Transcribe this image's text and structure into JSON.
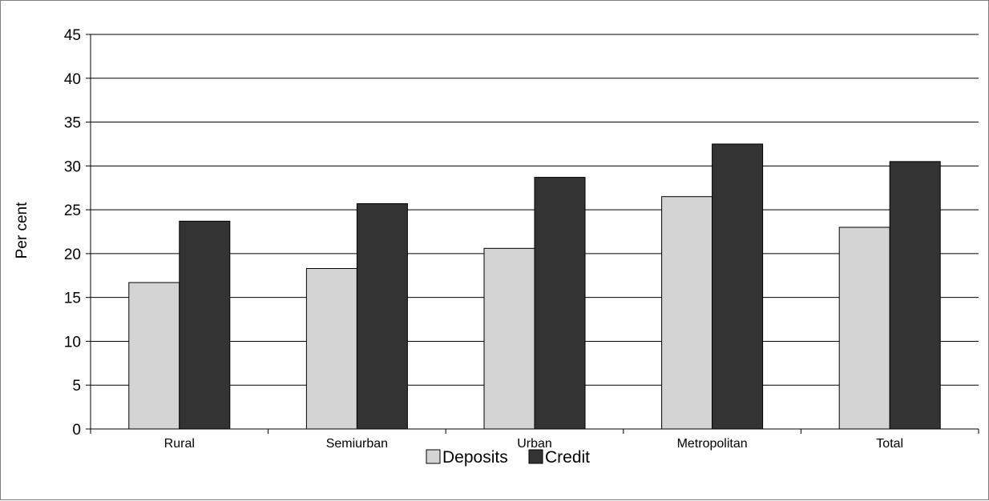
{
  "chart_data": {
    "type": "bar",
    "title": "",
    "xlabel": "",
    "ylabel": "Per cent",
    "ylim": [
      0,
      45
    ],
    "yticks": [
      0,
      5,
      10,
      15,
      20,
      25,
      30,
      35,
      40,
      45
    ],
    "grid": true,
    "legend_position": "bottom",
    "categories": [
      "Rural",
      "Semiurban",
      "Urban",
      "Metropolitan",
      "Total"
    ],
    "series": [
      {
        "name": "Deposits",
        "color": "#d4d4d4",
        "values": [
          16.7,
          18.3,
          20.6,
          26.5,
          23.0
        ]
      },
      {
        "name": "Credit",
        "color": "#333333",
        "values": [
          23.7,
          25.7,
          28.7,
          32.5,
          30.5
        ]
      }
    ]
  }
}
